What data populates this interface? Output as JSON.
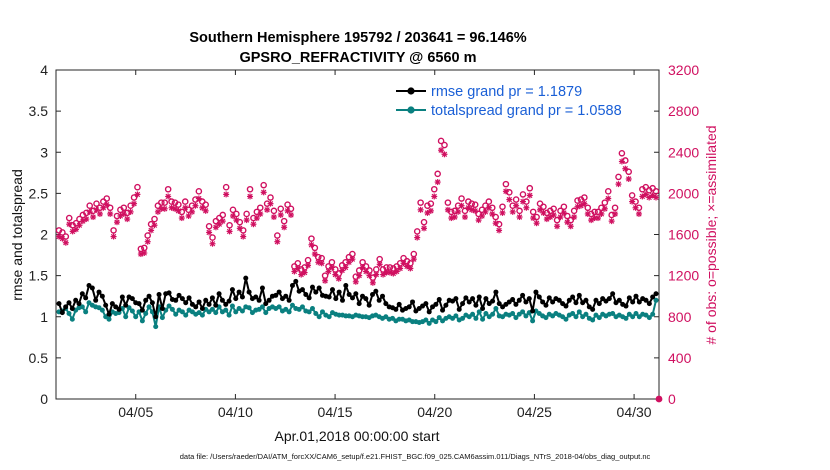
{
  "chart_data": {
    "type": "line",
    "title_line1": "Southern Hemisphere 195792 / 203641 = 96.146%",
    "title_line2": "GPSRO_REFRACTIVITY @ 6560 m",
    "xlabel": "Apr.01,2018 00:00:00 start",
    "ylabel_left": "rmse and totalspread",
    "ylabel_right": "# of obs: o=possible; ×=assimilated",
    "footnote": "data file: /Users/raeder/DAI/ATM_forcXX/CAM6_setup/f.e21.FHIST_BGC.f09_025.CAM6assim.011/Diags_NTrS_2018-04/obs_diag_output.nc",
    "x_range_days": [
      1,
      31.25
    ],
    "x_ticks": [
      {
        "day": 5,
        "label": "04/05"
      },
      {
        "day": 10,
        "label": "04/10"
      },
      {
        "day": 15,
        "label": "04/15"
      },
      {
        "day": 20,
        "label": "04/20"
      },
      {
        "day": 25,
        "label": "04/25"
      },
      {
        "day": 30,
        "label": "04/30"
      }
    ],
    "ylim_left": [
      0,
      4
    ],
    "yticks_left": [
      "0",
      "0.5",
      "1",
      "1.5",
      "2",
      "2.5",
      "3",
      "3.5",
      "4"
    ],
    "ylim_right": [
      0,
      3200
    ],
    "yticks_right": [
      "0",
      "400",
      "800",
      "1200",
      "1600",
      "2000",
      "2400",
      "2800",
      "3200"
    ],
    "colors": {
      "rmse": "#000000",
      "spread": "#0a8080",
      "obs": "#d01060",
      "legend_text": "#1a5fd6"
    },
    "series": [
      {
        "name": "rmse grand pr = 1.1879",
        "axis": "left",
        "values": [
          1.16,
          1.05,
          1.12,
          1.17,
          1.1,
          1.2,
          1.16,
          1.28,
          1.23,
          1.38,
          1.35,
          1.2,
          1.3,
          1.25,
          1.14,
          1.03,
          1.16,
          1.12,
          1.09,
          1.24,
          1.14,
          1.24,
          1.22,
          1.17,
          1.16,
          1.08,
          1.2,
          1.25,
          1.17,
          1.0,
          1.27,
          1.1,
          1.28,
          1.29,
          1.21,
          1.2,
          1.26,
          1.22,
          1.17,
          1.23,
          1.15,
          1.12,
          1.18,
          1.1,
          1.2,
          1.15,
          1.23,
          1.14,
          1.28,
          1.2,
          1.15,
          1.19,
          1.33,
          1.22,
          1.3,
          1.24,
          1.47,
          1.3,
          1.22,
          1.24,
          1.2,
          1.35,
          1.16,
          1.2,
          1.25,
          1.26,
          1.3,
          1.22,
          1.25,
          1.2,
          1.38,
          1.43,
          1.31,
          1.33,
          1.27,
          1.23,
          1.36,
          1.3,
          1.35,
          1.26,
          1.25,
          1.24,
          1.33,
          1.22,
          1.3,
          1.2,
          1.38,
          1.27,
          1.23,
          1.28,
          1.16,
          1.25,
          1.22,
          1.14,
          1.27,
          1.31,
          1.2,
          1.25,
          1.16,
          1.12,
          1.11,
          1.09,
          1.15,
          1.08,
          1.1,
          1.12,
          1.18,
          1.07,
          1.1,
          1.13,
          1.16,
          1.06,
          1.12,
          1.15,
          1.21,
          1.08,
          1.14,
          1.2,
          1.19,
          1.22,
          1.09,
          1.16,
          1.23,
          1.18,
          1.22,
          1.14,
          1.24,
          1.1,
          1.22,
          1.16,
          1.19,
          1.3,
          1.16,
          1.12,
          1.15,
          1.18,
          1.21,
          1.15,
          1.2,
          1.26,
          1.18,
          1.22,
          1.07,
          1.3,
          1.24,
          1.18,
          1.14,
          1.23,
          1.18,
          1.22,
          1.2,
          1.16,
          1.13,
          1.2,
          1.24,
          1.17,
          1.26,
          1.17,
          1.2,
          1.12,
          1.09,
          1.2,
          1.16,
          1.22,
          1.19,
          1.22,
          1.28,
          1.17,
          1.2,
          1.15,
          1.13,
          1.23,
          1.18,
          1.25,
          1.18,
          1.22,
          1.2,
          1.16,
          1.24,
          1.28
        ]
      },
      {
        "name": "totalspread grand pr = 1.0588",
        "axis": "left",
        "values": [
          1.06,
          1.07,
          1.1,
          1.04,
          0.97,
          1.08,
          1.11,
          1.12,
          1.06,
          1.17,
          1.14,
          1.12,
          1.11,
          1.08,
          1.0,
          0.97,
          1.06,
          1.04,
          1.05,
          1.1,
          1.0,
          1.11,
          1.07,
          1.0,
          1.06,
          0.95,
          1.04,
          1.12,
          1.06,
          0.88,
          1.12,
          0.99,
          1.08,
          1.13,
          1.09,
          1.03,
          1.08,
          1.06,
          1.02,
          1.08,
          1.06,
          1.03,
          1.05,
          1.02,
          1.09,
          1.06,
          1.09,
          1.05,
          1.12,
          1.06,
          1.08,
          1.02,
          1.13,
          1.06,
          1.1,
          1.07,
          1.12,
          1.11,
          1.05,
          1.08,
          1.09,
          1.12,
          1.05,
          1.1,
          1.12,
          1.1,
          1.12,
          1.07,
          1.09,
          1.06,
          1.14,
          1.1,
          1.09,
          1.12,
          1.07,
          1.06,
          1.1,
          1.04,
          1.0,
          1.06,
          1.02,
          1.0,
          1.05,
          1.03,
          1.02,
          1.02,
          1.01,
          1.01,
          1.0,
          1.02,
          1.01,
          1.0,
          1.0,
          0.99,
          1.01,
          1.02,
          1.0,
          0.98,
          1.0,
          0.97,
          0.98,
          0.95,
          0.97,
          0.97,
          0.95,
          0.96,
          0.94,
          0.94,
          0.93,
          0.94,
          0.96,
          0.92,
          0.96,
          0.94,
          0.99,
          0.95,
          0.98,
          1.0,
          0.98,
          1.01,
          0.96,
          0.98,
          1.02,
          1.0,
          1.03,
          0.98,
          1.06,
          0.97,
          1.04,
          1.0,
          1.03,
          1.1,
          1.01,
          1.0,
          1.03,
          1.02,
          1.04,
          0.99,
          1.03,
          1.06,
          1.01,
          1.05,
          0.95,
          1.07,
          1.04,
          1.01,
          0.99,
          1.03,
          1.01,
          1.04,
          1.02,
          1.0,
          0.97,
          1.02,
          1.04,
          1.0,
          1.06,
          1.0,
          1.03,
          0.98,
          0.96,
          1.02,
          0.99,
          1.03,
          1.01,
          1.03,
          1.04,
          1.0,
          1.02,
          1.0,
          0.98,
          1.03,
          1.0,
          1.04,
          1.0,
          1.03,
          1.02,
          0.99,
          1.03,
          1.2
        ]
      },
      {
        "name": "obs possible",
        "axis": "right",
        "values": [
          1640,
          1620,
          1580,
          1760,
          1690,
          1710,
          1750,
          1790,
          1810,
          1880,
          1830,
          1900,
          1860,
          1920,
          1950,
          1860,
          1640,
          1780,
          1840,
          1860,
          1810,
          1880,
          1960,
          2060,
          1460,
          1470,
          1590,
          1700,
          1750,
          1880,
          1910,
          1910,
          2040,
          1920,
          1910,
          1890,
          1820,
          1920,
          1840,
          1880,
          1940,
          2020,
          1920,
          1890,
          1680,
          1570,
          1730,
          1760,
          1790,
          2060,
          1690,
          1840,
          1800,
          1720,
          1640,
          1800,
          2040,
          1760,
          1820,
          1860,
          2080,
          1900,
          1960,
          1830,
          1590,
          1850,
          1730,
          1890,
          1850,
          1290,
          1320,
          1260,
          1280,
          1350,
          1560,
          1470,
          1380,
          1370,
          1200,
          1290,
          1330,
          1260,
          1220,
          1300,
          1330,
          1380,
          1410,
          1190,
          1250,
          1330,
          1290,
          1250,
          1180,
          1260,
          1360,
          1260,
          1280,
          1280,
          1270,
          1290,
          1320,
          1370,
          1340,
          1320,
          1410,
          1630,
          1910,
          1720,
          1880,
          1900,
          2040,
          2190,
          2510,
          2470,
          1910,
          1820,
          1830,
          1880,
          1950,
          1830,
          1920,
          1900,
          1890,
          1800,
          1840,
          1880,
          1920,
          1860,
          1770,
          1700,
          1870,
          2090,
          2010,
          1880,
          1940,
          1830,
          1990,
          1920,
          2050,
          1820,
          1770,
          1900,
          1870,
          1810,
          1830,
          1850,
          1740,
          1830,
          1870,
          1780,
          1740,
          1830,
          1930,
          1940,
          1960,
          1860,
          1800,
          1820,
          1820,
          1860,
          1910,
          2020,
          1790,
          1860,
          2160,
          2390,
          2320,
          2210,
          1980,
          1920,
          1860,
          2040,
          2060,
          2030,
          2050,
          2020
        ]
      },
      {
        "name": "obs assimilated",
        "axis": "right",
        "values": [
          1580,
          1560,
          1520,
          1700,
          1630,
          1650,
          1690,
          1730,
          1750,
          1820,
          1770,
          1840,
          1800,
          1860,
          1890,
          1800,
          1580,
          1720,
          1780,
          1800,
          1750,
          1820,
          1900,
          1990,
          1410,
          1420,
          1530,
          1640,
          1690,
          1820,
          1850,
          1850,
          1970,
          1860,
          1850,
          1830,
          1760,
          1860,
          1780,
          1820,
          1880,
          1950,
          1860,
          1830,
          1620,
          1510,
          1670,
          1700,
          1730,
          1990,
          1630,
          1780,
          1740,
          1660,
          1580,
          1740,
          1970,
          1700,
          1760,
          1800,
          2010,
          1840,
          1900,
          1770,
          1530,
          1790,
          1670,
          1830,
          1790,
          1240,
          1270,
          1210,
          1230,
          1300,
          1500,
          1410,
          1330,
          1320,
          1150,
          1240,
          1280,
          1210,
          1170,
          1250,
          1280,
          1330,
          1360,
          1140,
          1200,
          1280,
          1240,
          1200,
          1130,
          1210,
          1310,
          1210,
          1230,
          1230,
          1220,
          1240,
          1270,
          1320,
          1290,
          1270,
          1360,
          1570,
          1840,
          1660,
          1810,
          1830,
          1970,
          2110,
          2420,
          2380,
          1840,
          1760,
          1770,
          1820,
          1880,
          1770,
          1860,
          1840,
          1830,
          1740,
          1780,
          1820,
          1860,
          1800,
          1710,
          1640,
          1810,
          2020,
          1940,
          1820,
          1880,
          1770,
          1920,
          1860,
          1980,
          1760,
          1710,
          1840,
          1810,
          1750,
          1770,
          1790,
          1680,
          1770,
          1810,
          1720,
          1680,
          1770,
          1870,
          1880,
          1900,
          1800,
          1740,
          1760,
          1760,
          1800,
          1850,
          1950,
          1730,
          1800,
          2090,
          2310,
          2240,
          2140,
          1920,
          1860,
          1800,
          1970,
          1990,
          1960,
          1980,
          1960
        ]
      }
    ]
  }
}
